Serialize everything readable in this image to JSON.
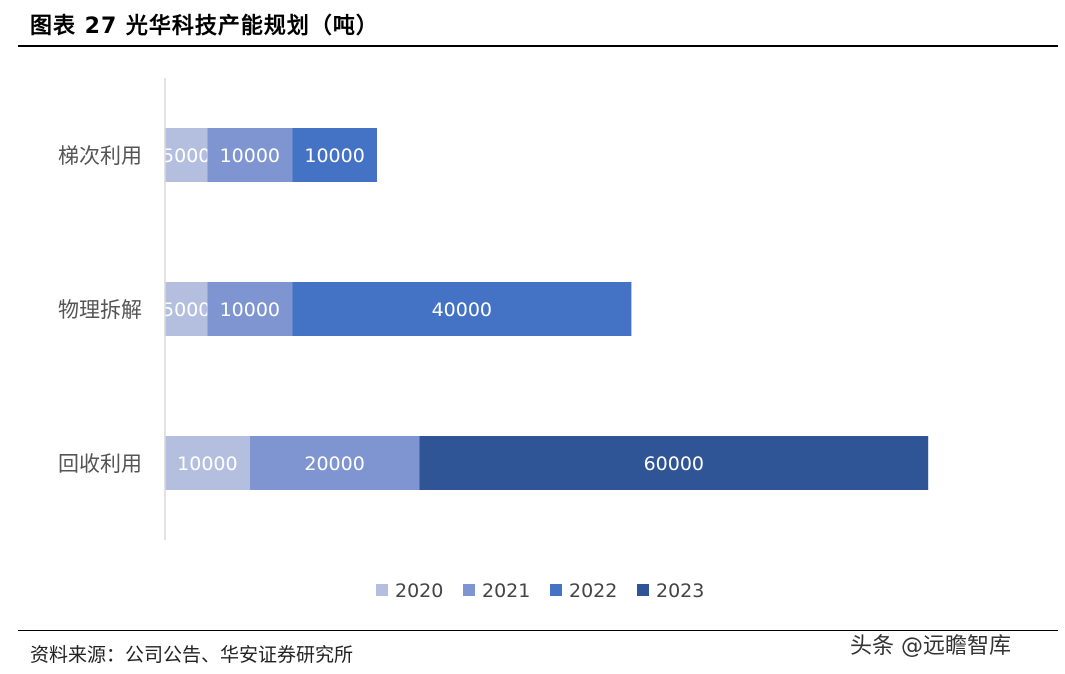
{
  "header": {
    "title": "图表 27  光华科技产能规划（吨）"
  },
  "footer": {
    "source": "资料来源：公司公告、华安证券研究所",
    "watermark": "头条 @远瞻智库"
  },
  "chart_data": {
    "type": "bar",
    "orientation": "horizontal",
    "stacked": true,
    "title": "",
    "categories": [
      "梯次利用",
      "物理拆解",
      "回收利用"
    ],
    "series": [
      {
        "name": "2020",
        "values": [
          5000,
          5000,
          10000
        ],
        "color": "#B4BFE0"
      },
      {
        "name": "2021",
        "values": [
          10000,
          10000,
          20000
        ],
        "color": "#7E95D2"
      },
      {
        "name": "2022",
        "values": [
          10000,
          40000,
          0
        ],
        "color": "#4472C4"
      },
      {
        "name": "2023",
        "values": [
          0,
          0,
          60000
        ],
        "color": "#2F5597"
      }
    ],
    "data_labels": [
      [
        "5000",
        "10000",
        "10000",
        null
      ],
      [
        "5000",
        "10000",
        "40000",
        null
      ],
      [
        "10000",
        "20000",
        null,
        "60000"
      ]
    ],
    "xlim": [
      0,
      90000
    ],
    "grid": false,
    "legend_position": "bottom"
  }
}
